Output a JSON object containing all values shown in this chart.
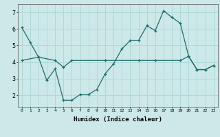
{
  "xlabel": "Humidex (Indice chaleur)",
  "bg_color": "#cde8e8",
  "grid_color": "#b0d8d8",
  "line_color": "#1a6b6b",
  "line1_x": [
    0,
    1,
    2,
    3,
    4,
    5,
    6,
    7,
    8,
    9,
    10,
    11,
    12,
    13,
    14,
    15,
    16,
    17,
    18,
    19,
    20,
    21,
    22,
    23
  ],
  "line1_y": [
    6.1,
    5.2,
    4.3,
    2.9,
    3.6,
    1.7,
    1.7,
    2.05,
    2.05,
    2.35,
    3.3,
    3.9,
    4.8,
    5.3,
    5.3,
    6.2,
    5.9,
    7.1,
    6.7,
    6.35,
    4.35,
    3.55,
    3.55,
    3.8
  ],
  "line2_x": [
    0,
    2,
    4,
    5,
    6,
    10,
    14,
    16,
    19,
    20,
    21,
    22,
    23
  ],
  "line2_y": [
    4.1,
    4.3,
    4.1,
    3.7,
    4.1,
    4.1,
    4.1,
    4.1,
    4.1,
    4.35,
    3.55,
    3.55,
    3.8
  ],
  "xlim": [
    -0.5,
    23.5
  ],
  "ylim": [
    1.3,
    7.5
  ],
  "yticks": [
    2,
    3,
    4,
    5,
    6,
    7
  ],
  "xticks": [
    0,
    1,
    2,
    3,
    4,
    5,
    6,
    7,
    8,
    9,
    10,
    11,
    12,
    13,
    14,
    15,
    16,
    17,
    18,
    19,
    20,
    21,
    22,
    23
  ]
}
